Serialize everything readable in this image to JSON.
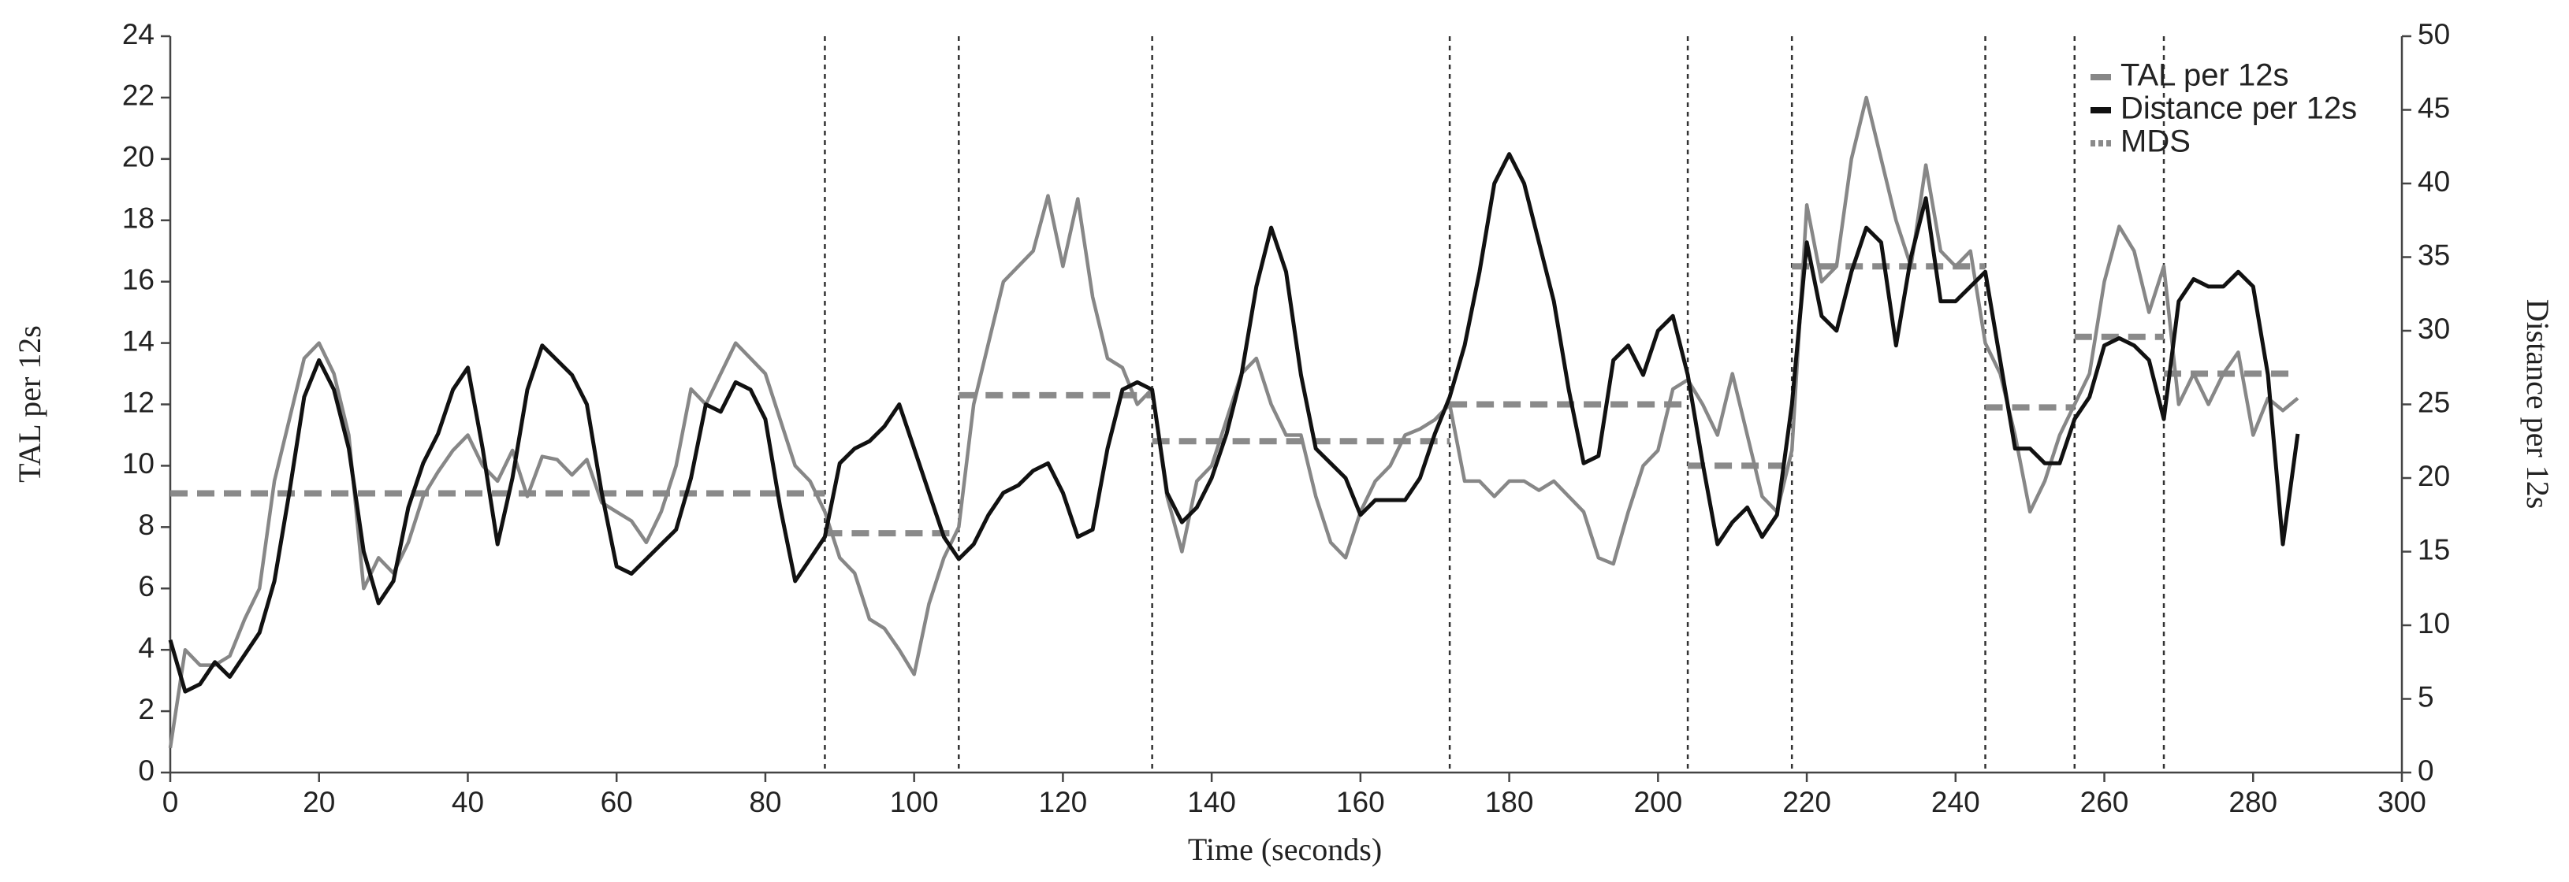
{
  "chart_data": {
    "type": "line",
    "xlabel": "Time (seconds)",
    "ylabel": "TAL per 12s",
    "y2label": "Distance per 12s",
    "xlim": [
      0,
      300
    ],
    "xticks": [
      0,
      20,
      40,
      60,
      80,
      100,
      120,
      140,
      160,
      180,
      200,
      220,
      240,
      260,
      280,
      300
    ],
    "ylim": [
      0,
      24
    ],
    "yticks": [
      0,
      2,
      4,
      6,
      8,
      10,
      12,
      14,
      16,
      18,
      20,
      22,
      24
    ],
    "y2lim": [
      0,
      50
    ],
    "y2ticks": [
      0,
      5,
      10,
      15,
      20,
      25,
      30,
      35,
      40,
      45,
      50
    ],
    "legend": "upper right",
    "x": [
      0,
      2,
      4,
      6,
      8,
      10,
      12,
      14,
      16,
      18,
      20,
      22,
      24,
      26,
      28,
      30,
      32,
      34,
      36,
      38,
      40,
      42,
      44,
      46,
      48,
      50,
      52,
      54,
      56,
      58,
      60,
      62,
      64,
      66,
      68,
      70,
      72,
      74,
      76,
      78,
      80,
      82,
      84,
      86,
      88,
      90,
      92,
      94,
      96,
      98,
      100,
      102,
      104,
      106,
      108,
      110,
      112,
      114,
      116,
      118,
      120,
      122,
      124,
      126,
      128,
      130,
      132,
      134,
      136,
      138,
      140,
      142,
      144,
      146,
      148,
      150,
      152,
      154,
      156,
      158,
      160,
      162,
      164,
      166,
      168,
      170,
      172,
      174,
      176,
      178,
      180,
      182,
      184,
      186,
      188,
      190,
      192,
      194,
      196,
      198,
      200,
      202,
      204,
      206,
      208,
      210,
      212,
      214,
      216,
      218,
      220,
      222,
      224,
      226,
      228,
      230,
      232,
      234,
      236,
      238,
      240,
      242,
      244,
      246,
      248,
      250,
      252,
      254,
      256,
      258,
      260,
      262,
      264,
      266,
      268,
      270,
      272,
      274,
      276,
      278,
      280,
      282,
      284,
      286
    ],
    "series": [
      {
        "name": "TAL per 12s",
        "color": "#878787",
        "axis": "y",
        "values": [
          0.8,
          4.0,
          3.5,
          3.5,
          3.8,
          5.0,
          6.0,
          9.5,
          11.5,
          13.5,
          14.0,
          13.0,
          11.0,
          6.0,
          7.0,
          6.5,
          7.5,
          9.0,
          9.8,
          10.5,
          11.0,
          10.0,
          9.5,
          10.5,
          9.0,
          10.3,
          10.2,
          9.7,
          10.2,
          8.8,
          8.5,
          8.2,
          7.5,
          8.5,
          10.0,
          12.5,
          12.0,
          13.0,
          14.0,
          13.5,
          13.0,
          11.5,
          10.0,
          9.5,
          8.5,
          7.0,
          6.5,
          5.0,
          4.7,
          4.0,
          3.2,
          5.5,
          7.0,
          8.0,
          12.0,
          14.0,
          16.0,
          16.5,
          17.0,
          18.8,
          16.5,
          18.7,
          15.5,
          13.5,
          13.2,
          12.0,
          12.5,
          9.0,
          7.2,
          9.5,
          10.0,
          11.5,
          13.0,
          13.5,
          12.0,
          11.0,
          11.0,
          9.0,
          7.5,
          7.0,
          8.5,
          9.5,
          10.0,
          11.0,
          11.2,
          11.5,
          12.0,
          9.5,
          9.5,
          9.0,
          9.5,
          9.5,
          9.2,
          9.5,
          9.0,
          8.5,
          7.0,
          6.8,
          8.5,
          10.0,
          10.5,
          12.5,
          12.8,
          12.0,
          11.0,
          13.0,
          11.0,
          9.0,
          8.5,
          10.5,
          18.5,
          16.0,
          16.5,
          20.0,
          22.0,
          20.0,
          18.0,
          16.5,
          19.8,
          17.0,
          16.5,
          17.0,
          14.0,
          13.0,
          11.0,
          8.5,
          9.5,
          11.0,
          12.0,
          13.0,
          16.0,
          17.8,
          17.0,
          15.0,
          16.5,
          12.0,
          13.0,
          12.0,
          13.0,
          13.7,
          11.0,
          12.2,
          11.8,
          12.2
        ]
      },
      {
        "name": "Distance per 12s",
        "color": "#111111",
        "axis": "y2",
        "values": [
          9,
          5.5,
          6.0,
          7.5,
          6.5,
          8.0,
          9.5,
          13,
          19,
          25.5,
          28,
          26,
          22,
          15,
          11.5,
          13,
          18,
          21,
          23,
          26,
          27.5,
          22,
          15.5,
          20,
          26,
          29,
          28,
          27,
          25,
          19,
          14,
          13.5,
          14.5,
          15.5,
          16.5,
          20,
          25,
          24.5,
          26.5,
          26,
          24,
          18,
          13,
          14.5,
          16,
          21,
          22,
          22.5,
          23.5,
          25,
          22,
          19,
          16,
          14.5,
          15.5,
          17.5,
          19,
          19.5,
          20.5,
          21,
          19,
          16,
          16.5,
          22,
          26,
          26.5,
          26,
          19,
          17,
          18,
          20,
          23,
          27,
          33,
          37,
          34,
          27,
          22,
          21,
          20,
          17.5,
          18.5,
          18.5,
          18.5,
          20,
          23,
          25.5,
          29,
          34,
          40,
          42,
          40,
          36,
          32,
          26,
          21,
          21.5,
          28,
          29,
          27,
          30,
          31,
          27,
          21,
          15.5,
          17,
          18,
          16,
          17.5,
          25,
          36,
          31,
          30,
          34,
          37,
          36,
          29,
          35,
          39,
          32,
          32,
          33,
          34,
          28,
          22,
          22,
          21,
          21,
          24,
          25.5,
          29,
          29.5,
          29,
          28,
          24,
          32,
          33.5,
          33,
          33,
          34,
          33,
          27,
          15.5,
          23
        ]
      }
    ],
    "mds": {
      "name": "MDS",
      "color": "#8a8a8a",
      "axis": "y",
      "segments": [
        {
          "start": 0,
          "end": 88,
          "value": 9.1
        },
        {
          "start": 88,
          "end": 106,
          "value": 7.8
        },
        {
          "start": 106,
          "end": 132,
          "value": 12.3
        },
        {
          "start": 132,
          "end": 172,
          "value": 10.8
        },
        {
          "start": 172,
          "end": 204,
          "value": 12.0
        },
        {
          "start": 204,
          "end": 218,
          "value": 10.0
        },
        {
          "start": 218,
          "end": 244,
          "value": 16.5
        },
        {
          "start": 244,
          "end": 256,
          "value": 11.9
        },
        {
          "start": 256,
          "end": 268,
          "value": 14.2
        },
        {
          "start": 268,
          "end": 286,
          "value": 13.0
        }
      ]
    },
    "phase_boundaries": [
      88,
      106,
      132,
      172,
      204,
      218,
      244,
      256,
      268
    ]
  }
}
